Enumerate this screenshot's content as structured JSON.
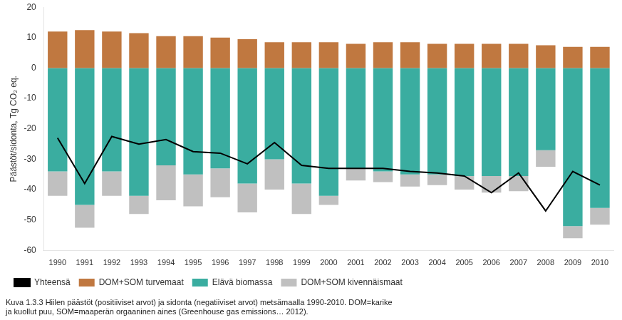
{
  "chart_data": {
    "type": "bar",
    "stacked": true,
    "ylabel": "Päästöt/sidonta, Tg CO₂ eq.",
    "caption": [
      "Kuva 1.3.3 Hiilen päästöt (positiiviset arvot) ja sidonta (negatiiviset arvot) metsämaalla 1990-2010. DOM=karike",
      "ja kuollut puu, SOM=maaperän orgaaninen aines (Greenhouse gas emissions… 2012)."
    ],
    "categories": [
      "1990",
      "1991",
      "1992",
      "1993",
      "1994",
      "1995",
      "1996",
      "1997",
      "1998",
      "1999",
      "2000",
      "2001",
      "2002",
      "2003",
      "2004",
      "2005",
      "2006",
      "2007",
      "2008",
      "2009",
      "2010"
    ],
    "series": [
      {
        "name": "DOM+SOM turvemaat",
        "color": "#C07840",
        "values": [
          12.0,
          12.5,
          12.0,
          11.5,
          10.5,
          10.5,
          10.0,
          9.5,
          8.5,
          8.5,
          8.5,
          8.0,
          8.5,
          8.5,
          8.0,
          8.0,
          8.0,
          8.0,
          7.5,
          7.0,
          7.0
        ]
      },
      {
        "name": "Elävä biomassa",
        "color": "#3AADA0",
        "values": [
          -34.0,
          -45.0,
          -34.0,
          -42.0,
          -32.0,
          -35.0,
          -33.0,
          -38.0,
          -30.0,
          -38.0,
          -42.0,
          -33.0,
          -34.0,
          -35.0,
          -35.0,
          -35.5,
          -35.5,
          -35.5,
          -27.0,
          -52.0,
          -46.0
        ]
      },
      {
        "name": "DOM+SOM kivennäismaat",
        "color": "#C0C0C0",
        "values": [
          -8.0,
          -7.5,
          -8.0,
          -6.0,
          -11.5,
          -10.5,
          -9.5,
          -9.5,
          -10.0,
          -10.0,
          -3.0,
          -4.0,
          -3.5,
          -4.0,
          -3.5,
          -4.5,
          -5.5,
          -5.0,
          -5.5,
          -4.0,
          -5.5
        ]
      },
      {
        "name": "Yhteensä",
        "type": "line",
        "color": "#000000",
        "values": [
          -23.0,
          -38.0,
          -22.5,
          -25.0,
          -23.5,
          -27.5,
          -28.0,
          -31.5,
          -24.5,
          -32.0,
          -33.0,
          -33.0,
          -33.0,
          -34.0,
          -34.5,
          -35.5,
          -41.0,
          -34.5,
          -47.0,
          -34.0,
          -38.5
        ]
      }
    ],
    "ylim": [
      -60,
      20
    ],
    "yticks": [
      -60,
      -50,
      -40,
      -30,
      -20,
      -10,
      0,
      10,
      20
    ],
    "grid": false,
    "legend": "lower left"
  }
}
